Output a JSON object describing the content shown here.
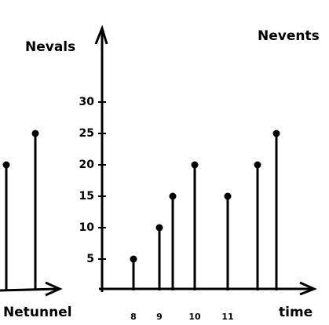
{
  "chart_data": [
    {
      "type": "stem",
      "title": "Nevents",
      "x_label": "time",
      "categories": [
        "8",
        "9",
        null,
        "10",
        "11",
        null,
        null
      ],
      "values": [
        5,
        10,
        15,
        20,
        15,
        20,
        25
      ],
      "color": "#000000",
      "ylim": [
        0,
        40
      ],
      "yticks": [
        5,
        10,
        15,
        20,
        25,
        30
      ]
    },
    {
      "type": "stem",
      "y_label": "Nevals",
      "x_label": "Netunnel",
      "categories": [
        null,
        null
      ],
      "values": [
        20,
        25
      ],
      "color": "#000000",
      "ylim": [
        0,
        40
      ]
    }
  ]
}
